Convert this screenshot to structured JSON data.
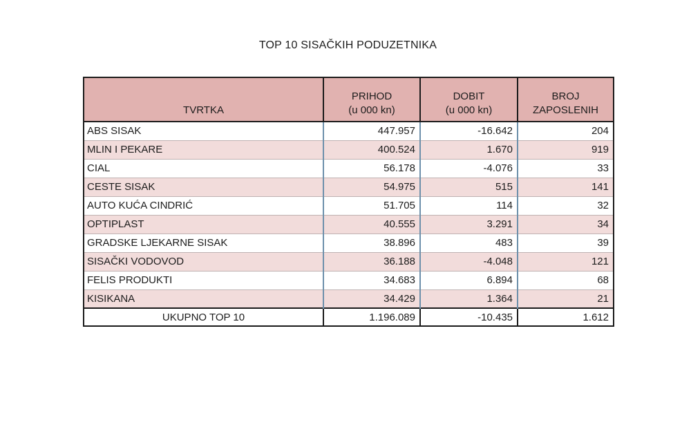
{
  "title": "TOP 10 SISAČKIH PODUZETNIKA",
  "table": {
    "columns": [
      {
        "label": "TVRTKA",
        "sub": ""
      },
      {
        "label": "PRIHOD",
        "sub": "(u 000 kn)"
      },
      {
        "label": "DOBIT",
        "sub": "(u 000 kn)"
      },
      {
        "label": "BROJ",
        "sub": "ZAPOSLENIH"
      }
    ],
    "rows": [
      {
        "tvrtka": "ABS SISAK",
        "prihod": "447.957",
        "dobit": "-16.642",
        "broj": "204"
      },
      {
        "tvrtka": "MLIN I PEKARE",
        "prihod": "400.524",
        "dobit": "1.670",
        "broj": "919"
      },
      {
        "tvrtka": "CIAL",
        "prihod": "56.178",
        "dobit": "-4.076",
        "broj": "33"
      },
      {
        "tvrtka": "CESTE SISAK",
        "prihod": "54.975",
        "dobit": "515",
        "broj": "141"
      },
      {
        "tvrtka": "AUTO KUĆA CINDRIĆ",
        "prihod": "51.705",
        "dobit": "114",
        "broj": "32"
      },
      {
        "tvrtka": "OPTIPLAST",
        "prihod": "40.555",
        "dobit": "3.291",
        "broj": "34"
      },
      {
        "tvrtka": "GRADSKE LJEKARNE SISAK",
        "prihod": "38.896",
        "dobit": "483",
        "broj": "39"
      },
      {
        "tvrtka": "SISAČKI VODOVOD",
        "prihod": "36.188",
        "dobit": "-4.048",
        "broj": "121"
      },
      {
        "tvrtka": "FELIS PRODUKTI",
        "prihod": "34.683",
        "dobit": "6.894",
        "broj": "68"
      },
      {
        "tvrtka": "KISIKANA",
        "prihod": "34.429",
        "dobit": "1.364",
        "broj": "21"
      }
    ],
    "total": {
      "label": "UKUPNO TOP 10",
      "prihod": "1.196.089",
      "dobit": "-10.435",
      "broj": "1.612"
    }
  },
  "chart_data": {
    "type": "table",
    "title": "TOP 10 SISAČKIH PODUZETNIKA",
    "columns": [
      "TVRTKA",
      "PRIHOD (u 000 kn)",
      "DOBIT (u 000 kn)",
      "BROJ ZAPOSLENIH"
    ],
    "rows": [
      [
        "ABS SISAK",
        447957,
        -16642,
        204
      ],
      [
        "MLIN I PEKARE",
        400524,
        1670,
        919
      ],
      [
        "CIAL",
        56178,
        -4076,
        33
      ],
      [
        "CESTE SISAK",
        54975,
        515,
        141
      ],
      [
        "AUTO KUĆA CINDRIĆ",
        51705,
        114,
        32
      ],
      [
        "OPTIPLAST",
        40555,
        3291,
        34
      ],
      [
        "GRADSKE LJEKARNE SISAK",
        38896,
        483,
        39
      ],
      [
        "SISAČKI VODOVOD",
        36188,
        -4048,
        121
      ],
      [
        "FELIS PRODUKTI",
        34683,
        6894,
        68
      ],
      [
        "KISIKANA",
        34429,
        1364,
        21
      ]
    ],
    "total_row": [
      "UKUPNO TOP 10",
      1196089,
      -10435,
      1612
    ],
    "number_format": "thousands separated by dots, values in 000 kn"
  },
  "colors": {
    "header_bg": "#e1b2b0",
    "row_alt_bg": "#f2dcdb",
    "row_bg": "#ffffff",
    "divider_blue": "#6d90ab",
    "grid_line": "#bfb2b2",
    "border_black": "#1a1a1a",
    "text": "#1c1c1c"
  }
}
